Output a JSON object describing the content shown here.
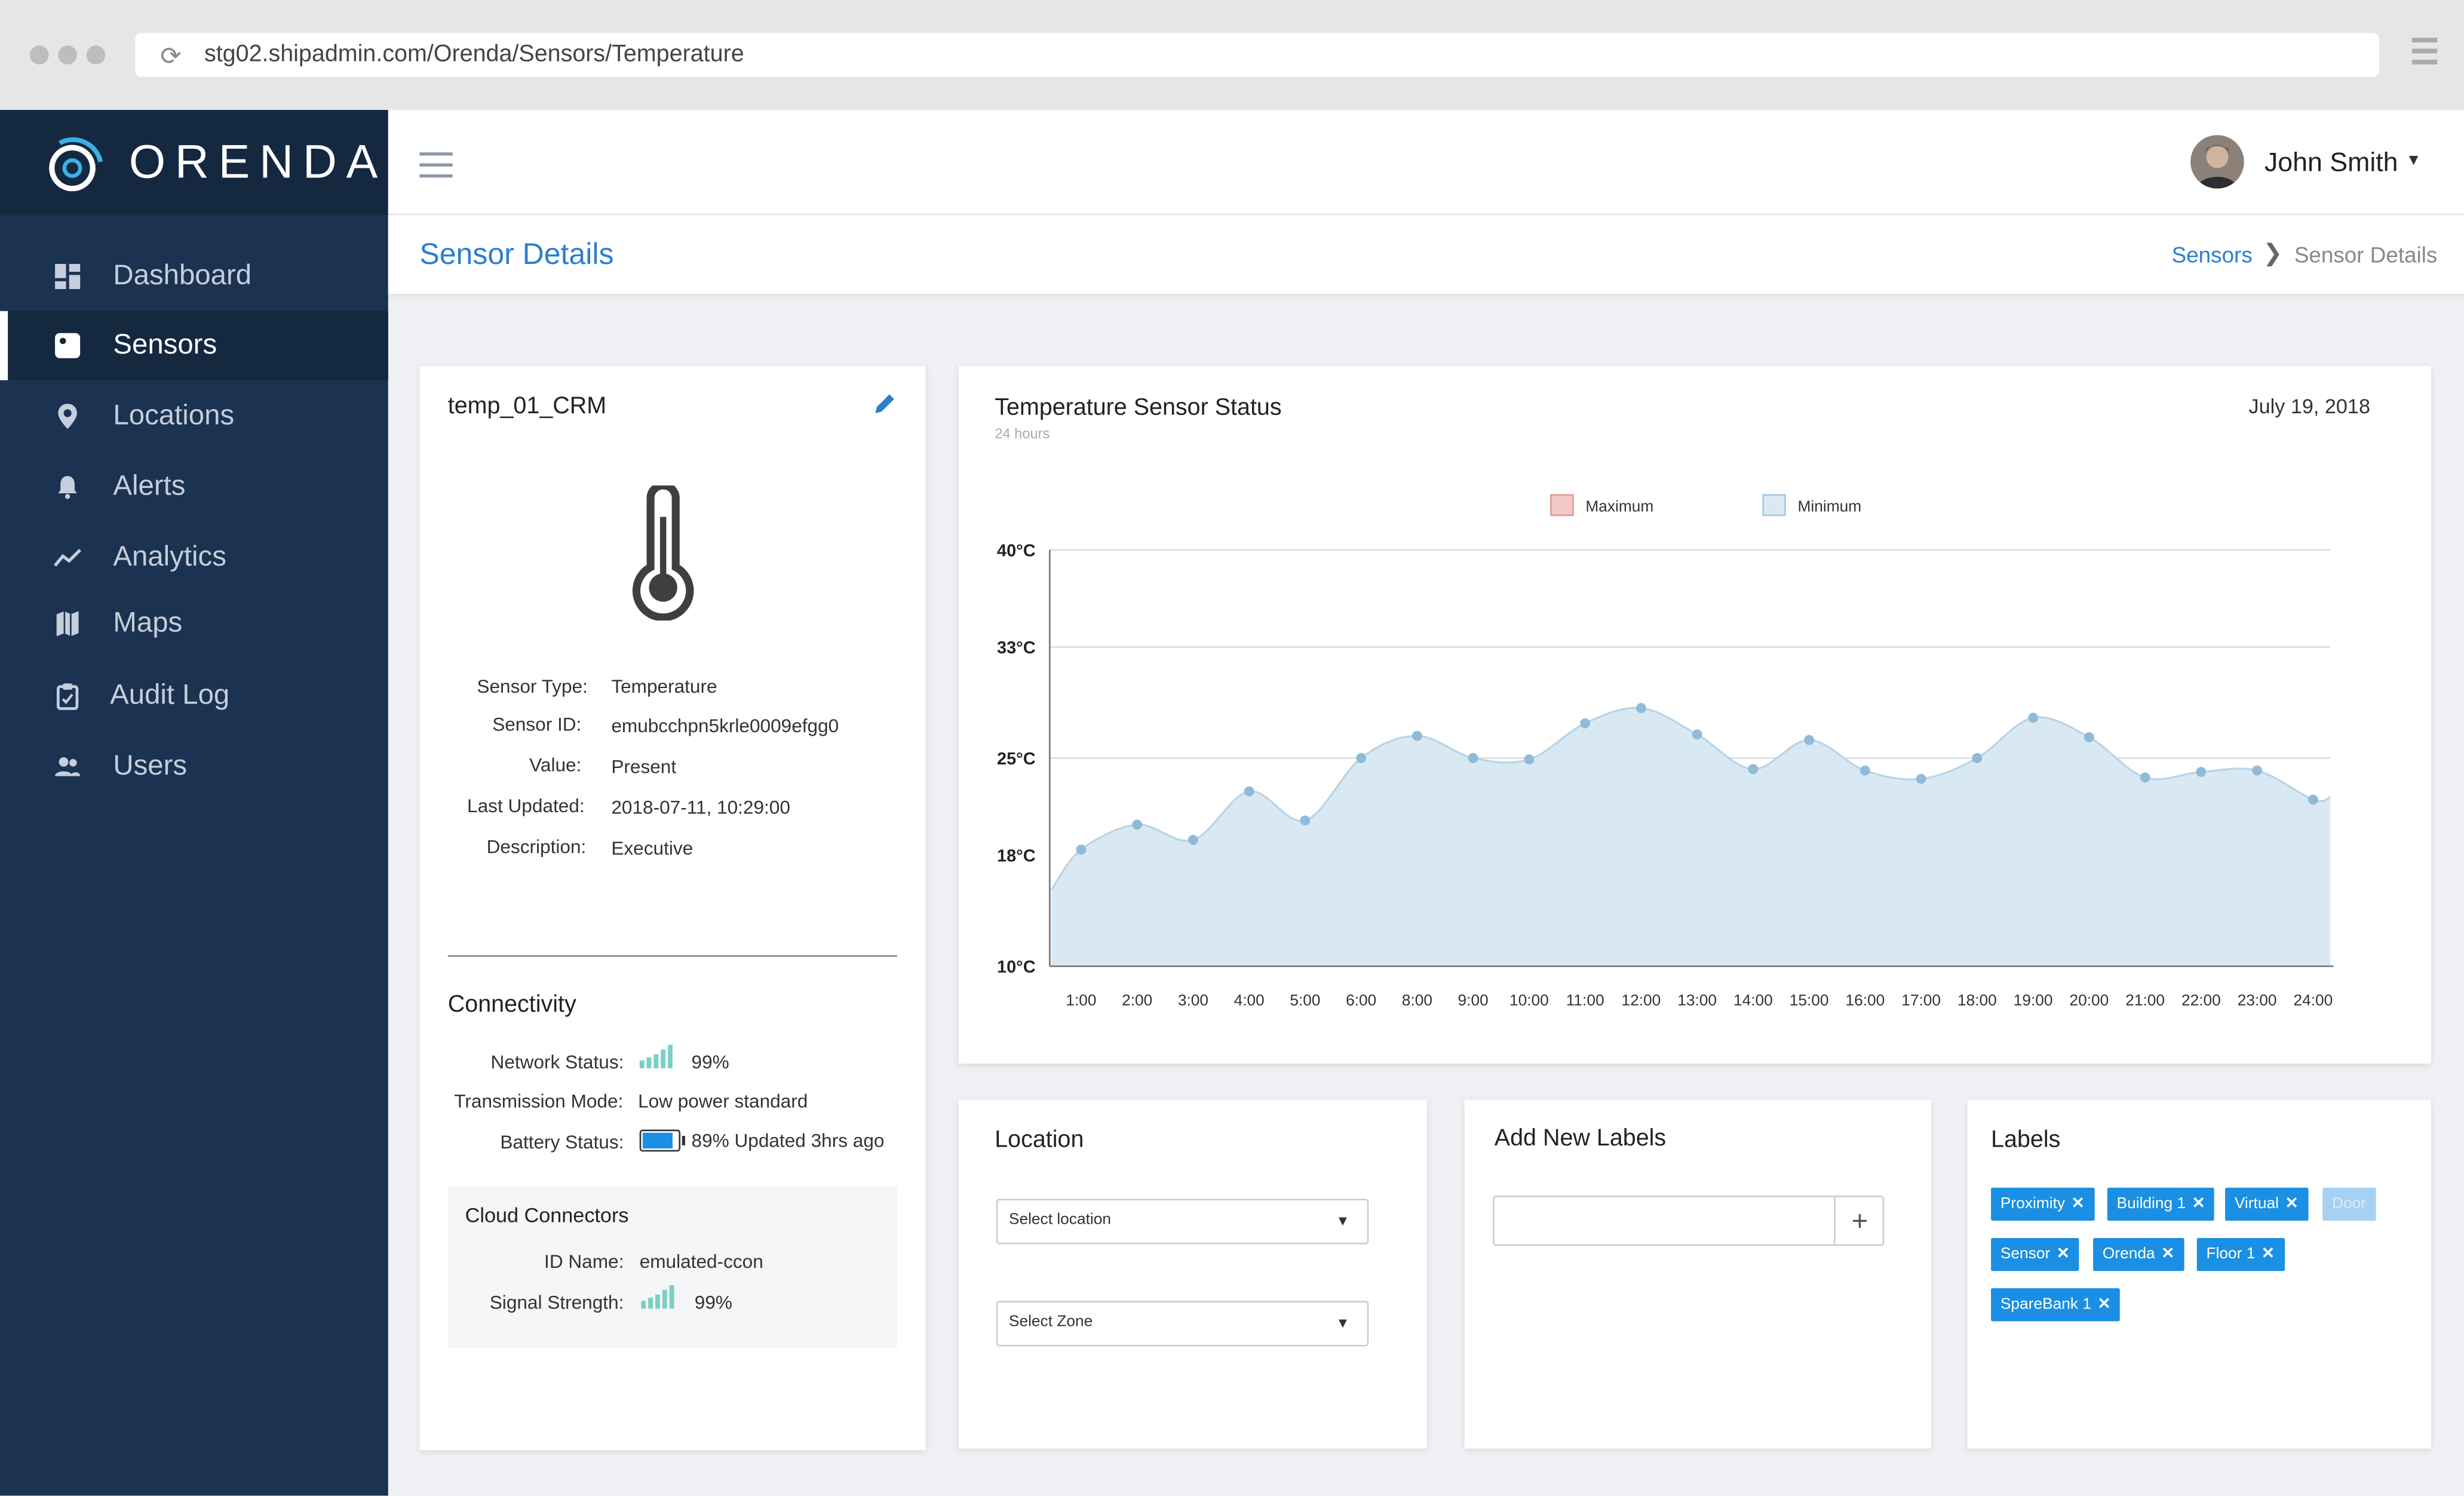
{
  "browser": {
    "url": "stg02.shipadmin.com/Orenda/Sensors/Temperature"
  },
  "brand": {
    "logo_text": "ORENDA"
  },
  "sidebar": {
    "items": [
      {
        "label": "Dashboard",
        "icon": "dashboard-icon"
      },
      {
        "label": "Sensors",
        "icon": "sensor-icon",
        "active": true
      },
      {
        "label": "Locations",
        "icon": "location-pin-icon"
      },
      {
        "label": "Alerts",
        "icon": "bell-icon"
      },
      {
        "label": "Analytics",
        "icon": "trend-line-icon"
      },
      {
        "label": "Maps",
        "icon": "map-icon"
      },
      {
        "label": "Audit Log",
        "icon": "clipboard-icon"
      },
      {
        "label": "Users",
        "icon": "users-icon"
      }
    ]
  },
  "header": {
    "user_name": "John Smith"
  },
  "page": {
    "title": "Sensor Details",
    "breadcrumb": [
      "Sensors",
      "Sensor Details"
    ]
  },
  "sensor": {
    "name": "temp_01_CRM",
    "fields": [
      {
        "key": "Sensor Type:",
        "value": "Temperature"
      },
      {
        "key": "Sensor ID:",
        "value": "emubcchpn5krle0009efgg0"
      },
      {
        "key": "Value:",
        "value": "Present"
      },
      {
        "key": "Last Updated:",
        "value": "2018-07-11, 10:29:00"
      },
      {
        "key": "Description:",
        "value": "Executive"
      }
    ],
    "connectivity": {
      "title": "Connectivity",
      "network_label": "Network Status:",
      "network_value": "99%",
      "transmission_label": "Transmission Mode:",
      "transmission_value": "Low power standard",
      "battery_label": "Battery Status:",
      "battery_value": "89% Updated 3hrs ago",
      "battery_level": 0.89
    },
    "cloud": {
      "title": "Cloud Connectors",
      "id_label": "ID Name:",
      "id_value": "emulated-ccon",
      "signal_label": "Signal Strength:",
      "signal_value": "99%"
    }
  },
  "chart": {
    "title": "Temperature Sensor Status",
    "subtitle": "24 hours",
    "date": "July 19, 2018"
  },
  "chart_data": {
    "type": "area",
    "legend": [
      "Maximum",
      "Minimum"
    ],
    "legend_position": "top-center",
    "y_ticks": [
      "40°C",
      "33°C",
      "25°C",
      "18°C",
      "10°C"
    ],
    "y_tick_values": [
      40,
      33,
      25,
      18,
      10
    ],
    "ylim": [
      10,
      40
    ],
    "x": [
      "1:00",
      "2:00",
      "3:00",
      "4:00",
      "5:00",
      "6:00",
      "8:00",
      "9:00",
      "10:00",
      "11:00",
      "12:00",
      "13:00",
      "14:00",
      "15:00",
      "16:00",
      "17:00",
      "18:00",
      "19:00",
      "20:00",
      "21:00",
      "22:00",
      "23:00",
      "24:00"
    ],
    "series": [
      {
        "name": "Minimum",
        "values": [
          18.4,
          20.2,
          19.1,
          22.6,
          20.5,
          25.0,
          26.6,
          25.0,
          24.9,
          27.5,
          28.6,
          26.7,
          24.2,
          26.3,
          24.1,
          23.5,
          25.0,
          27.9,
          26.5,
          23.6,
          24.0,
          24.1,
          22.0
        ]
      }
    ],
    "series_colors": {
      "Maximum": "#f5c9c5",
      "Minimum": "#d9e9f4"
    },
    "grid": "horizontal at 40, 33 and 25"
  },
  "location": {
    "title": "Location",
    "select_location": "Select location",
    "select_zone": "Select Zone"
  },
  "add_labels": {
    "title": "Add New Labels",
    "input_value": "",
    "plus": "+"
  },
  "labels": {
    "title": "Labels",
    "tags": [
      "Proximity",
      "Building 1",
      "Virtual",
      "Sensor",
      "Orenda",
      "Floor 1",
      "SpareBank 1"
    ],
    "typing": "Door"
  },
  "colors": {
    "accent": "#2a7fd1",
    "sidebar": "#1b3251",
    "tag": "#1a8fe3"
  }
}
